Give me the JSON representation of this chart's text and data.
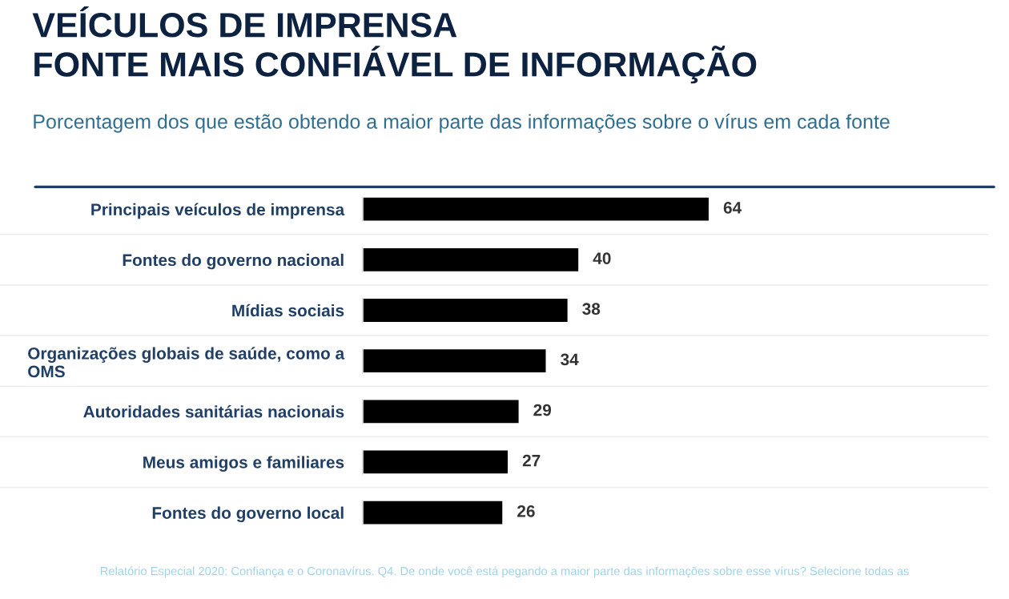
{
  "chart_data": {
    "type": "bar",
    "orientation": "horizontal",
    "title": "VEÍCULOS DE IMPRENSA\nFONTE MAIS CONFIÁVEL DE INFORMAÇÃO",
    "subtitle": "Porcentagem dos que estão obtendo a maior parte das informações sobre o vírus em cada fonte",
    "categories": [
      "Principais veículos de imprensa",
      "Fontes do governo nacional",
      "Mídias sociais",
      "Organizações globais de saúde, como a\nOMS",
      "Autoridades sanitárias nacionais",
      "Meus amigos e familiares",
      "Fontes do governo local"
    ],
    "values": [
      64,
      40,
      38,
      34,
      29,
      27,
      26
    ],
    "color": "#000000",
    "data_labels": true,
    "annotations": [
      "Relatório Especial 2020: Confiança e o Coronavírus. Q4. De onde você está pegando a maior parte das informações sobre esse vírus? Selecione todas as"
    ]
  }
}
